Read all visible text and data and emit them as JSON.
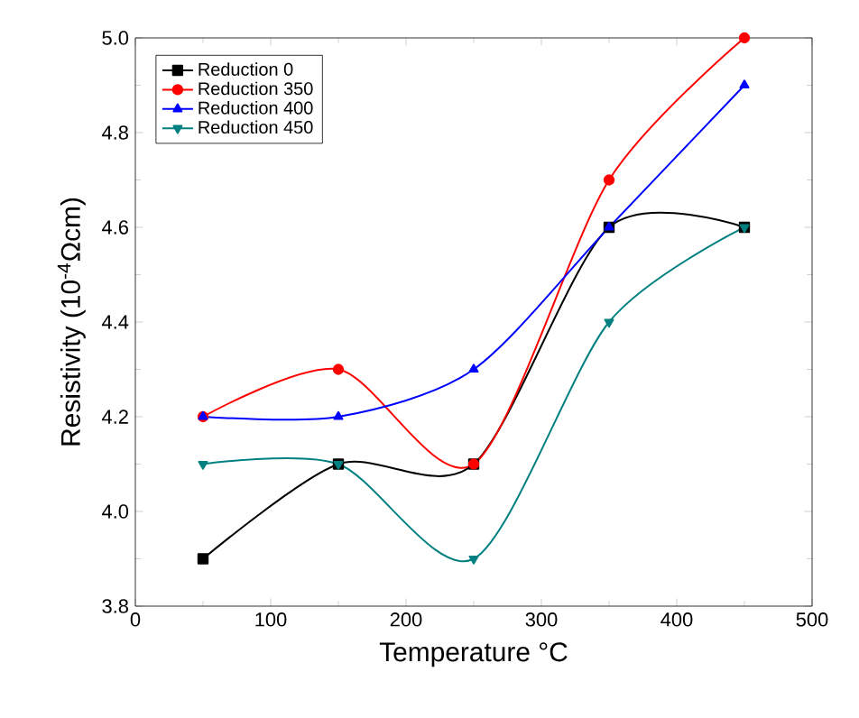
{
  "chart_data": {
    "type": "line",
    "xlabel": "Temperature °C",
    "ylabel": "Resistivity (10$^{-4}$Ωcm)",
    "x": [
      50,
      150,
      250,
      350,
      450
    ],
    "series": [
      {
        "name": "Reduction 0",
        "color": "#000000",
        "marker": "square",
        "values": [
          3.9,
          4.1,
          4.1,
          4.6,
          4.6
        ]
      },
      {
        "name": "Reduction 350",
        "color": "#ff0000",
        "marker": "circle",
        "values": [
          4.2,
          4.3,
          4.1,
          4.7,
          5.0
        ]
      },
      {
        "name": "Reduction 400",
        "color": "#0000ff",
        "marker": "triangle",
        "values": [
          4.2,
          4.2,
          4.3,
          4.6,
          4.9
        ]
      },
      {
        "name": "Reduction 450",
        "color": "#008080",
        "marker": "triangle-down",
        "values": [
          4.1,
          4.1,
          3.9,
          4.4,
          4.6
        ]
      }
    ],
    "xlim": [
      0,
      500
    ],
    "xticks": [
      0,
      100,
      200,
      300,
      400,
      500
    ],
    "ylim": [
      3.8,
      5.0
    ],
    "yticks": [
      {
        "value": 3.8,
        "label": "3.8"
      },
      {
        "value": 4.0,
        "label": "4.0"
      },
      {
        "value": 4.2,
        "label": "4.2"
      },
      {
        "value": 4.4,
        "label": "4.4"
      },
      {
        "value": 4.6,
        "label": "4.6"
      },
      {
        "value": 4.8,
        "label": "4.8"
      },
      {
        "value": 5.0,
        "label": "5.0"
      }
    ],
    "legend": "top left",
    "grid": false
  }
}
